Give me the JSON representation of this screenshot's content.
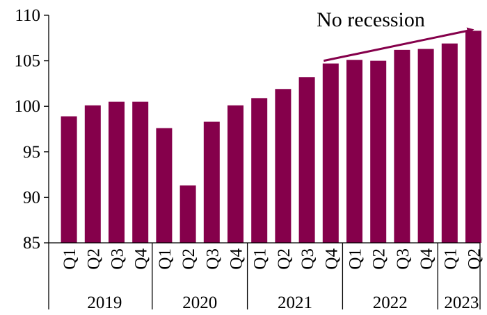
{
  "chart_data": {
    "type": "bar",
    "title": "",
    "xlabel": "",
    "ylabel": "",
    "ylim": [
      85,
      110
    ],
    "yticks": [
      85,
      90,
      95,
      100,
      105,
      110
    ],
    "grid": false,
    "legend": "none",
    "bar_color": "#85004B",
    "categories": [
      "Q1",
      "Q2",
      "Q3",
      "Q4",
      "Q1",
      "Q2",
      "Q3",
      "Q4",
      "Q1",
      "Q2",
      "Q3",
      "Q4",
      "Q1",
      "Q2",
      "Q3",
      "Q4",
      "Q1",
      "Q2"
    ],
    "year_groups": [
      {
        "label": "2019",
        "count": 4
      },
      {
        "label": "2020",
        "count": 4
      },
      {
        "label": "2021",
        "count": 4
      },
      {
        "label": "2022",
        "count": 4
      },
      {
        "label": "2023",
        "count": 2
      }
    ],
    "values": [
      98.9,
      100.1,
      100.5,
      100.5,
      97.6,
      91.3,
      98.3,
      100.1,
      100.9,
      101.9,
      103.2,
      104.7,
      105.1,
      105.0,
      106.2,
      106.3,
      106.9,
      108.3
    ],
    "annotation": {
      "text": "No recession",
      "arrow_from_index": 11,
      "arrow_to_index": 17,
      "arrow_from_value": 105.0,
      "arrow_to_value": 108.4,
      "color": "#85004B"
    }
  }
}
